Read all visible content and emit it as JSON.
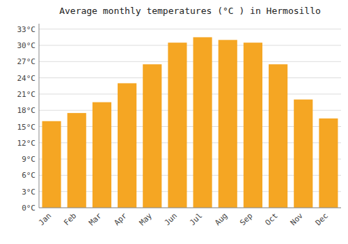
{
  "chart_data": {
    "type": "bar",
    "title": "Average monthly temperatures (°C ) in Hermosillo",
    "categories": [
      "Jan",
      "Feb",
      "Mar",
      "Apr",
      "May",
      "Jun",
      "Jul",
      "Aug",
      "Sep",
      "Oct",
      "Nov",
      "Dec"
    ],
    "values": [
      16.0,
      17.5,
      19.5,
      23.0,
      26.5,
      30.5,
      31.5,
      31.0,
      30.5,
      26.5,
      20.0,
      16.5
    ],
    "color": "#F5A623",
    "ylim": [
      0,
      34
    ],
    "yticks": [
      {
        "value": 0,
        "label": "0°C"
      },
      {
        "value": 3,
        "label": "3°C"
      },
      {
        "value": 6,
        "label": "6°C"
      },
      {
        "value": 9,
        "label": "9°C"
      },
      {
        "value": 12,
        "label": "12°C"
      },
      {
        "value": 15,
        "label": "15°C"
      },
      {
        "value": 18,
        "label": "18°C"
      },
      {
        "value": 21,
        "label": "21°C"
      },
      {
        "value": 24,
        "label": "24°C"
      },
      {
        "value": 27,
        "label": "27°C"
      },
      {
        "value": 30,
        "label": "30°C"
      },
      {
        "value": 33,
        "label": "33°C"
      }
    ],
    "grid": true
  }
}
